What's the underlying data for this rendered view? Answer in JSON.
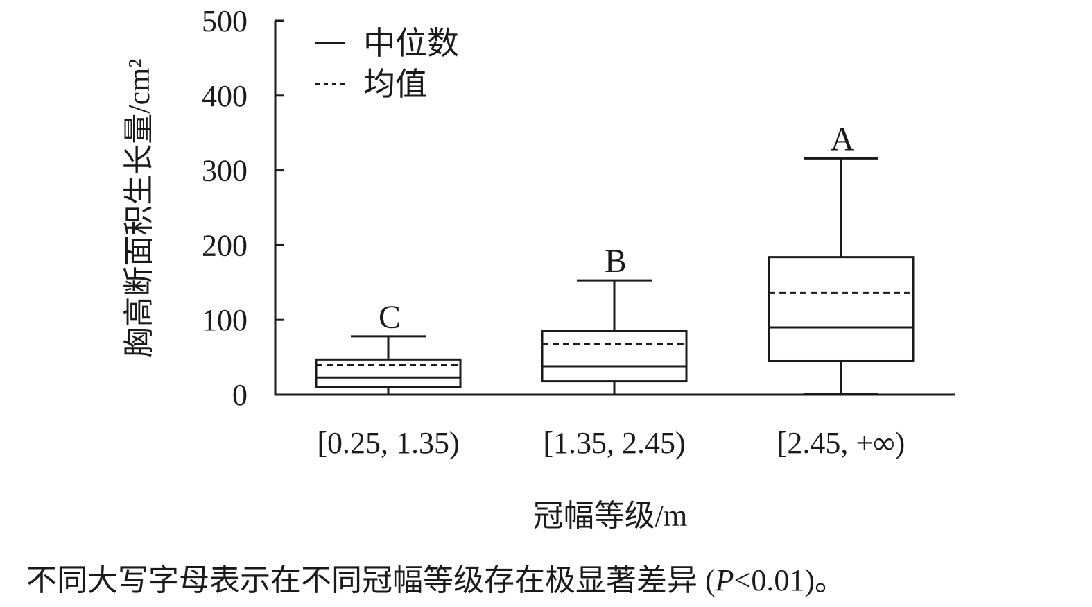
{
  "chart_data": {
    "type": "box",
    "categories": [
      "[0.25, 1.35)",
      "[1.35, 2.45)",
      "[2.45, +∞)"
    ],
    "boxes": [
      {
        "category": "[0.25, 1.35)",
        "whisker_low": 0,
        "q1": 10,
        "median": 23,
        "mean": 40,
        "q3": 47,
        "whisker_high": 78,
        "group_letter": "C"
      },
      {
        "category": "[1.35, 2.45)",
        "whisker_low": 0,
        "q1": 18,
        "median": 38,
        "mean": 68,
        "q3": 85,
        "whisker_high": 153,
        "group_letter": "B"
      },
      {
        "category": "[2.45, +∞)",
        "whisker_low": 1,
        "q1": 45,
        "median": 90,
        "mean": 136,
        "q3": 184,
        "whisker_high": 316,
        "group_letter": "A"
      }
    ],
    "ylabel": "胸高断面积生长量/cm²",
    "xlabel": "冠幅等级/m",
    "ylim": [
      0,
      500
    ],
    "yticks": [
      0,
      100,
      200,
      300,
      400,
      500
    ],
    "grid": false,
    "legend": {
      "placement": "top-left",
      "entries": [
        {
          "label": "中位数",
          "line_style": "solid"
        },
        {
          "label": "均值",
          "line_style": "dashed"
        }
      ]
    }
  },
  "footnote": {
    "prefix": "不同大写字母表示在不同冠幅等级存在极显著差异 (",
    "p_symbol": "P",
    "suffix": "<0.01)。"
  },
  "colors": {
    "ink": "#1a1a1a",
    "background": "#ffffff"
  }
}
